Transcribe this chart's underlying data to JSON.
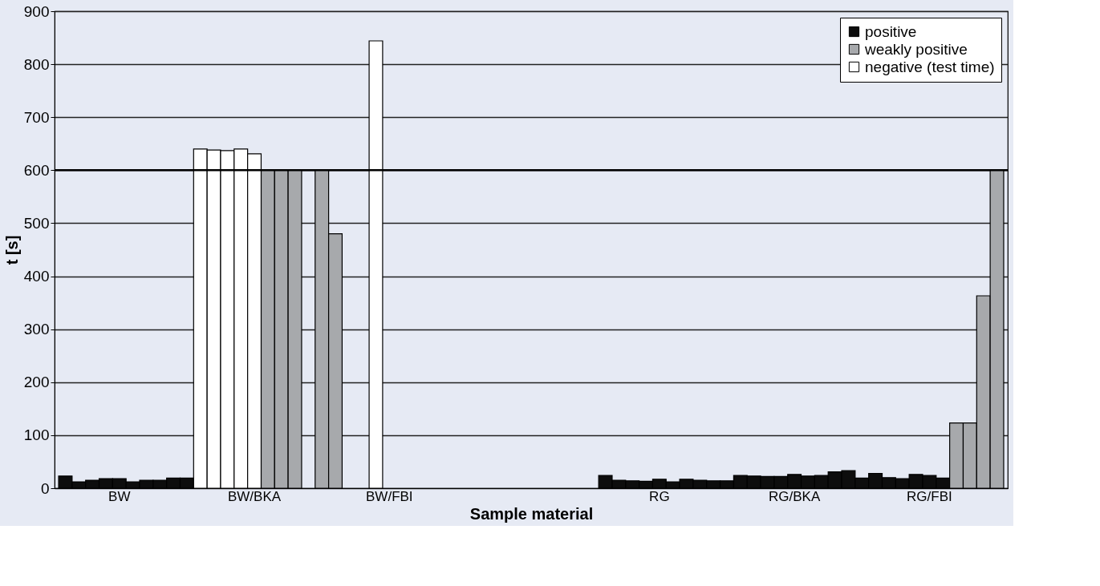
{
  "chart_data": {
    "type": "bar",
    "xlabel": "Sample material",
    "ylabel": "t [s]",
    "categories": [
      null,
      null,
      null,
      null,
      "BW",
      null,
      null,
      null,
      null,
      null,
      null,
      null,
      null,
      null,
      "BW/BKA",
      null,
      null,
      null,
      null,
      null,
      null,
      null,
      null,
      null,
      "BW/FBI",
      null,
      null,
      null,
      null,
      null,
      null,
      null,
      null,
      null,
      null,
      null,
      null,
      null,
      null,
      null,
      null,
      null,
      null,
      null,
      "RG",
      null,
      null,
      null,
      null,
      null,
      null,
      null,
      null,
      null,
      "RG/BKA",
      null,
      null,
      null,
      null,
      null,
      null,
      null,
      null,
      null,
      "RG/FBI",
      null,
      null,
      null,
      null,
      null
    ],
    "series": [
      {
        "name": "positive",
        "color": "#0d0d0d",
        "values": [
          23,
          12,
          15,
          18,
          18,
          12,
          15,
          15,
          19,
          19,
          null,
          null,
          null,
          null,
          null,
          null,
          null,
          null,
          null,
          null,
          null,
          null,
          null,
          null,
          null,
          null,
          null,
          null,
          null,
          null,
          null,
          null,
          null,
          null,
          null,
          null,
          null,
          null,
          null,
          null,
          24,
          15,
          14,
          13,
          17,
          12,
          17,
          15,
          14,
          14,
          24,
          23,
          22,
          22,
          26,
          23,
          24,
          31,
          33,
          19,
          28,
          20,
          18,
          26,
          24,
          19,
          null,
          null,
          null,
          null
        ]
      },
      {
        "name": "weakly positive",
        "color": "#a7a9ac",
        "values": [
          null,
          null,
          null,
          null,
          null,
          null,
          null,
          null,
          null,
          null,
          null,
          null,
          null,
          null,
          null,
          600,
          600,
          600,
          null,
          600,
          480,
          null,
          null,
          null,
          null,
          null,
          null,
          null,
          null,
          null,
          null,
          null,
          null,
          null,
          null,
          null,
          null,
          null,
          null,
          null,
          null,
          null,
          null,
          null,
          null,
          null,
          null,
          null,
          null,
          null,
          null,
          null,
          null,
          null,
          null,
          null,
          null,
          null,
          null,
          null,
          null,
          null,
          null,
          null,
          null,
          null,
          123,
          123,
          363,
          600
        ]
      },
      {
        "name": "negative (test time)",
        "color": "#ffffff",
        "values": [
          null,
          null,
          null,
          null,
          null,
          null,
          null,
          null,
          null,
          null,
          640,
          638,
          637,
          640,
          631,
          null,
          null,
          null,
          null,
          null,
          null,
          null,
          null,
          844,
          null,
          null,
          null,
          null,
          null,
          null,
          null,
          null,
          null,
          null,
          null,
          null,
          null,
          null,
          null,
          null,
          null,
          null,
          null,
          null,
          null,
          null,
          null,
          null,
          null,
          null,
          null,
          null,
          null,
          null,
          null,
          null,
          null,
          null,
          null,
          null,
          null,
          null,
          null,
          null,
          null,
          null,
          null,
          null,
          null,
          null
        ]
      }
    ],
    "ylim": [
      0,
      900
    ],
    "yticks": [
      0,
      100,
      200,
      300,
      400,
      500,
      600,
      700,
      800,
      900
    ],
    "ref_lines": [
      {
        "axis": "y",
        "value": 600,
        "color": "#000000"
      }
    ],
    "grid": "y",
    "legend": "top right"
  }
}
